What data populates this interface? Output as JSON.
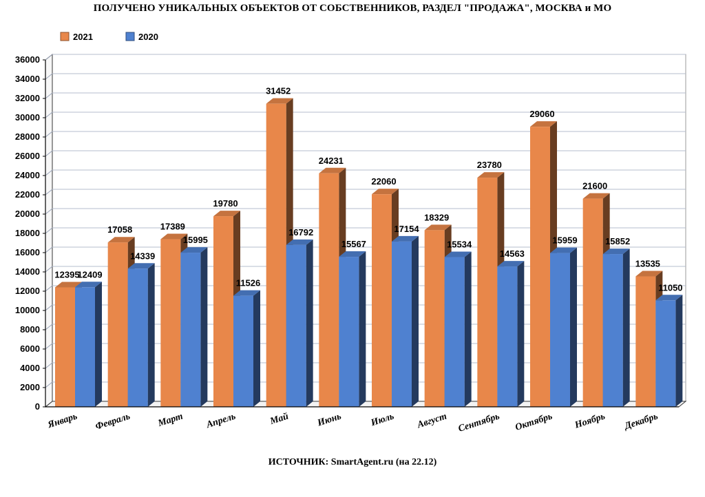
{
  "title": "ПОЛУЧЕНО УНИКАЛЬНЫХ ОБЪЕКТОВ ОТ СОБСТВЕННИКОВ, РАЗДЕЛ \"ПРОДАЖА\", МОСКВА и МО",
  "source": "ИСТОЧНИК: SmartAgent.ru (на 22.12)",
  "chart_data": {
    "type": "bar",
    "title": "ПОЛУЧЕНО УНИКАЛЬНЫХ ОБЪЕКТОВ ОТ СОБСТВЕННИКОВ, РАЗДЕЛ \"ПРОДАЖА\", МОСКВА и МО",
    "xlabel": "",
    "ylabel": "",
    "categories": [
      "Январь",
      "Февраль",
      "Март",
      "Апрель",
      "Май",
      "Июнь",
      "Июль",
      "Август",
      "Сентябрь",
      "Октябрь",
      "Ноябрь",
      "Декабрь"
    ],
    "series": [
      {
        "name": "2021",
        "color": "#E8874A",
        "values": [
          12395,
          17058,
          17389,
          19780,
          31452,
          24231,
          22060,
          18329,
          23780,
          29060,
          21600,
          13535
        ]
      },
      {
        "name": "2020",
        "color": "#4F81D0",
        "values": [
          12409,
          14339,
          15995,
          11526,
          16792,
          15567,
          17154,
          15534,
          14563,
          15959,
          15852,
          11050
        ]
      }
    ],
    "ylim": [
      0,
      36000
    ],
    "yticks": [
      0,
      2000,
      4000,
      6000,
      8000,
      10000,
      12000,
      14000,
      16000,
      18000,
      20000,
      22000,
      24000,
      26000,
      28000,
      30000,
      32000,
      34000,
      36000
    ],
    "grid": true,
    "legend": "top-left"
  }
}
